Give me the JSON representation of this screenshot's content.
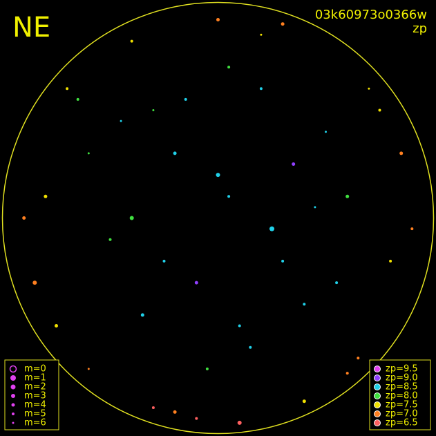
{
  "chart_data": {
    "type": "scatter",
    "label": "NE",
    "title": "03k60973o0366w",
    "subtitle": "zp",
    "xlim": [
      -1,
      1
    ],
    "ylim": [
      -1,
      1
    ],
    "magnitudes": [
      {
        "value": 0,
        "label": "m=0"
      },
      {
        "value": 1,
        "label": "m=1"
      },
      {
        "value": 2,
        "label": "m=2"
      },
      {
        "value": 3,
        "label": "m=3"
      },
      {
        "value": 4,
        "label": "m=4"
      },
      {
        "value": 5,
        "label": "m=5"
      },
      {
        "value": 6,
        "label": "m=6"
      }
    ],
    "zp_levels": [
      {
        "value": 9.5,
        "label": "zp=9.5",
        "color": "#e040f0"
      },
      {
        "value": 9.0,
        "label": "zp=9.0",
        "color": "#9040ff"
      },
      {
        "value": 8.5,
        "label": "zp=8.5",
        "color": "#20d0e8"
      },
      {
        "value": 8.0,
        "label": "zp=8.0",
        "color": "#40e040"
      },
      {
        "value": 7.5,
        "label": "zp=7.5",
        "color": "#f0e000"
      },
      {
        "value": 7.0,
        "label": "zp=7.0",
        "color": "#ff8020"
      },
      {
        "value": 6.5,
        "label": "zp=6.5",
        "color": "#ff6060"
      }
    ],
    "stars": {
      "x": [
        0.05,
        -0.2,
        0.3,
        -0.4,
        0.5,
        0.1,
        -0.1,
        0.2,
        -0.3,
        0.4,
        0.0,
        -0.5,
        0.6,
        -0.6,
        0.15,
        -0.25,
        0.35,
        -0.45,
        0.55,
        0.25,
        -0.15,
        0.45,
        -0.35,
        0.05,
        -0.05,
        -0.8,
        0.8,
        -0.85,
        0.85,
        -0.7,
        0.7,
        -0.9,
        0.9,
        0.0,
        0.1,
        -0.1,
        0.3,
        -0.3,
        0.6,
        -0.6,
        -0.75,
        0.75,
        0.2,
        -0.2,
        0.65,
        -0.65,
        0.4,
        -0.4
      ],
      "y": [
        0.1,
        0.3,
        -0.2,
        0.0,
        0.4,
        -0.5,
        -0.3,
        0.6,
        0.5,
        -0.4,
        0.2,
        -0.1,
        0.1,
        0.3,
        -0.6,
        -0.2,
        0.25,
        0.45,
        -0.3,
        -0.05,
        0.55,
        0.05,
        -0.45,
        0.7,
        -0.7,
        0.1,
        -0.2,
        -0.3,
        0.3,
        0.6,
        0.6,
        0.0,
        -0.05,
        0.92,
        -0.95,
        -0.93,
        0.9,
        -0.88,
        -0.72,
        -0.7,
        -0.5,
        0.5,
        0.85,
        -0.9,
        -0.65,
        0.55,
        -0.85,
        0.82
      ],
      "zp": [
        8.5,
        8.5,
        8.5,
        8.0,
        8.5,
        8.5,
        9.0,
        8.5,
        8.0,
        8.5,
        8.5,
        8.0,
        8.0,
        8.0,
        8.5,
        8.5,
        9.0,
        8.5,
        8.5,
        8.5,
        8.5,
        8.5,
        8.5,
        8.0,
        8.0,
        7.5,
        7.5,
        7.0,
        7.0,
        7.5,
        7.5,
        7.0,
        7.0,
        7.0,
        6.5,
        6.5,
        7.0,
        6.5,
        7.0,
        7.0,
        7.5,
        7.5,
        7.5,
        7.0,
        7.0,
        8.0,
        7.5,
        7.5
      ],
      "m": [
        5,
        4,
        5,
        3,
        6,
        5,
        4,
        5,
        6,
        5,
        3,
        5,
        4,
        6,
        5,
        5,
        4,
        6,
        5,
        2,
        5,
        6,
        4,
        5,
        5,
        4,
        5,
        3,
        4,
        5,
        6,
        4,
        5,
        4,
        3,
        5,
        4,
        5,
        5,
        6,
        4,
        5,
        6,
        4,
        5,
        5,
        4,
        5
      ]
    }
  }
}
